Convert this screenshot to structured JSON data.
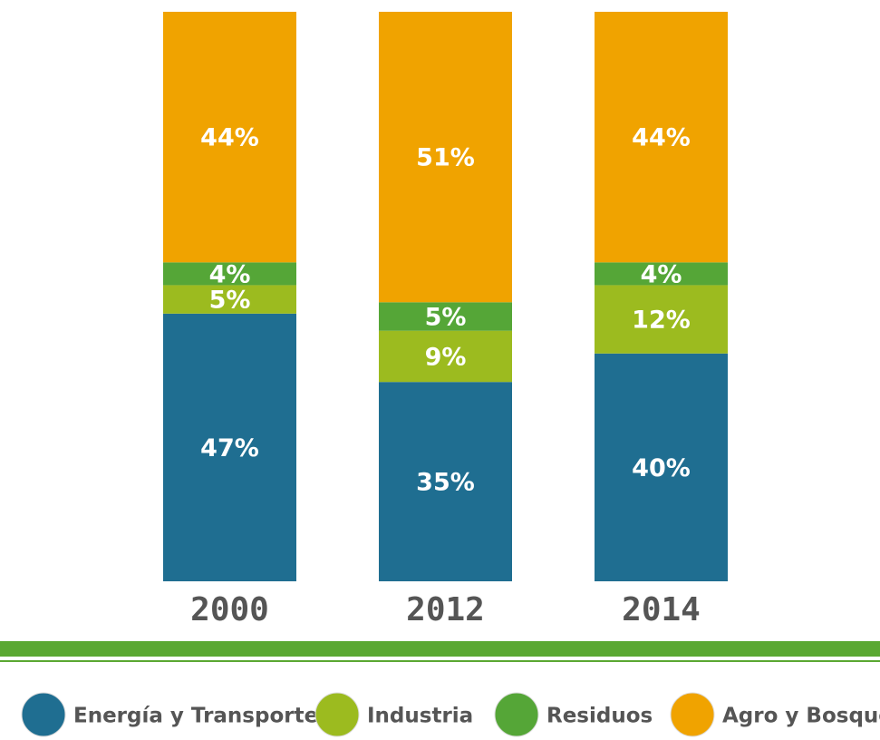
{
  "chart_data": {
    "type": "bar",
    "stacked": true,
    "categories": [
      "2000",
      "2012",
      "2014"
    ],
    "series": [
      {
        "name": "Energía y Transporte",
        "color": "#1f6e91",
        "values": [
          47,
          35,
          40
        ],
        "value_labels": [
          "47%",
          "35%",
          "40%"
        ]
      },
      {
        "name": "Industria",
        "color": "#9cbb1f",
        "values": [
          5,
          9,
          12
        ],
        "value_labels": [
          "5%",
          "9%",
          "12%"
        ]
      },
      {
        "name": "Residuos",
        "color": "#55a637",
        "values": [
          4,
          5,
          4
        ],
        "value_labels": [
          "4%",
          "5%",
          "4%"
        ]
      },
      {
        "name": "Agro y Bosques",
        "color": "#f0a300",
        "values": [
          44,
          51,
          44
        ],
        "value_labels": [
          "44%",
          "51%",
          "44%"
        ]
      }
    ]
  }
}
